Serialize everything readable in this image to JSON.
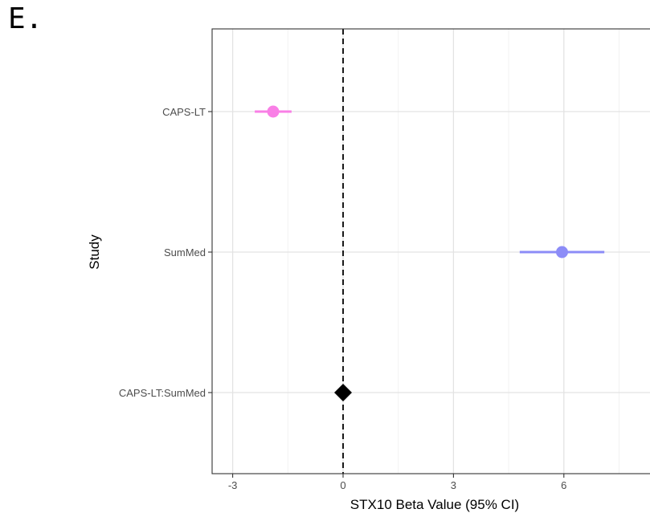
{
  "figure": {
    "panel_label": "E."
  },
  "chart_data": {
    "type": "scatter",
    "subtype": "forest-plot",
    "xlabel": "STX10 Beta Value (95% CI)",
    "ylabel": "Study",
    "xlim": [
      -3.5,
      9
    ],
    "xticks": [
      -3,
      0,
      3,
      6
    ],
    "reference_line": {
      "x": 0,
      "style": "dashed",
      "color": "#000000"
    },
    "grid": true,
    "legend": "none",
    "categories": [
      "CAPS-LT",
      "SumMed",
      "CAPS-LT:SumMed"
    ],
    "series": [
      {
        "values": [
          -1.9,
          5.95,
          0.0
        ]
      }
    ],
    "ci_lower": [
      -2.4,
      4.8,
      null
    ],
    "ci_upper": [
      -1.4,
      7.1,
      null
    ],
    "point_shapes": [
      "circle",
      "circle",
      "diamond"
    ],
    "point_colors": [
      "#f97fe6",
      "#8c8cf7",
      "#000000"
    ]
  }
}
